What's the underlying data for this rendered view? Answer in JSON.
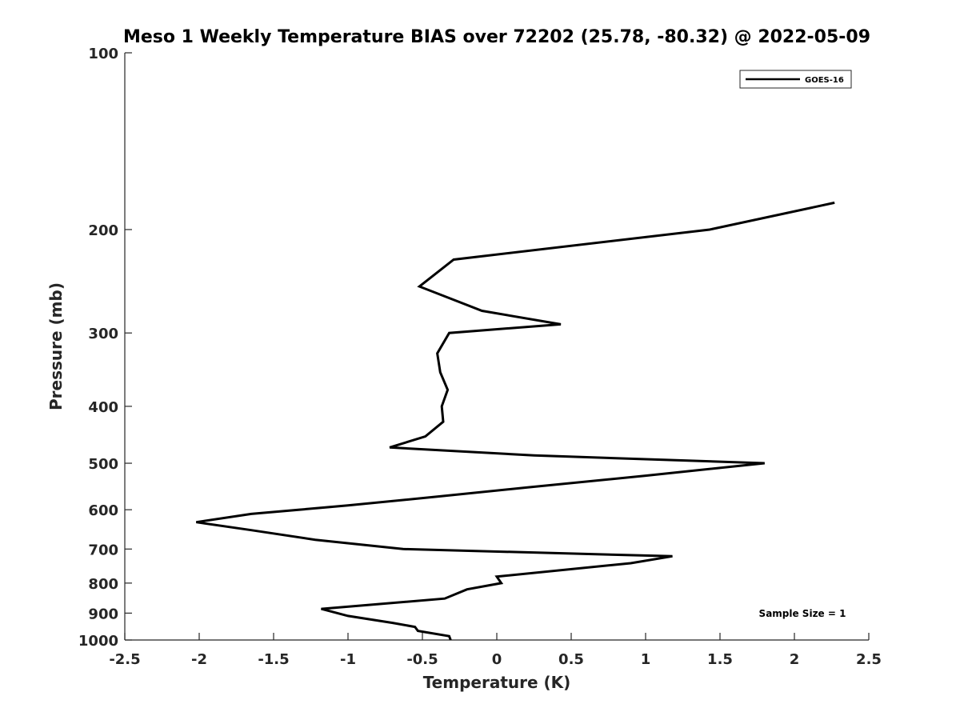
{
  "chart_data": {
    "type": "line",
    "title": "Meso 1 Weekly Temperature BIAS over 72202 (25.78, -80.32) @ 2022-05-09",
    "xlabel": "Temperature (K)",
    "ylabel": "Pressure (mb)",
    "xlim": [
      -2.5,
      2.5
    ],
    "ylim": [
      100,
      1000
    ],
    "y_scale": "log",
    "y_reversed": true,
    "grid": false,
    "legend_position": "top-right",
    "x_ticks": [
      -2.5,
      -2,
      -1.5,
      -1,
      -0.5,
      0,
      0.5,
      1,
      1.5,
      2,
      2.5
    ],
    "x_tick_labels": [
      "-2.5",
      "-2",
      "-1.5",
      "-1",
      "-0.5",
      "0",
      "0.5",
      "1",
      "1.5",
      "2",
      "2.5"
    ],
    "y_ticks": [
      100,
      200,
      300,
      400,
      500,
      600,
      700,
      800,
      900,
      1000
    ],
    "y_tick_labels": [
      "100",
      "200",
      "300",
      "400",
      "500",
      "600",
      "700",
      "800",
      "900",
      "1000"
    ],
    "series": [
      {
        "name": "GOES-16",
        "color": "#000000",
        "points": [
          {
            "x": 2.27,
            "p": 180
          },
          {
            "x": 1.43,
            "p": 200
          },
          {
            "x": -0.29,
            "p": 225
          },
          {
            "x": -0.52,
            "p": 250
          },
          {
            "x": -0.1,
            "p": 275
          },
          {
            "x": 0.43,
            "p": 290
          },
          {
            "x": -0.32,
            "p": 300
          },
          {
            "x": -0.4,
            "p": 325
          },
          {
            "x": -0.38,
            "p": 350
          },
          {
            "x": -0.33,
            "p": 375
          },
          {
            "x": -0.37,
            "p": 400
          },
          {
            "x": -0.36,
            "p": 425
          },
          {
            "x": -0.48,
            "p": 450
          },
          {
            "x": -0.72,
            "p": 470
          },
          {
            "x": 0.25,
            "p": 485
          },
          {
            "x": 1.8,
            "p": 500
          },
          {
            "x": 1.0,
            "p": 525
          },
          {
            "x": 0.2,
            "p": 550
          },
          {
            "x": -0.4,
            "p": 570
          },
          {
            "x": -1.0,
            "p": 590
          },
          {
            "x": -1.65,
            "p": 610
          },
          {
            "x": -2.02,
            "p": 630
          },
          {
            "x": -1.65,
            "p": 650
          },
          {
            "x": -1.22,
            "p": 675
          },
          {
            "x": -0.63,
            "p": 700
          },
          {
            "x": 1.18,
            "p": 720
          },
          {
            "x": 0.9,
            "p": 740
          },
          {
            "x": 0.0,
            "p": 780
          },
          {
            "x": 0.03,
            "p": 800
          },
          {
            "x": -0.2,
            "p": 820
          },
          {
            "x": -0.35,
            "p": 850
          },
          {
            "x": -1.18,
            "p": 885
          },
          {
            "x": -1.0,
            "p": 910
          },
          {
            "x": -0.7,
            "p": 935
          },
          {
            "x": -0.55,
            "p": 950
          },
          {
            "x": -0.53,
            "p": 965
          },
          {
            "x": -0.32,
            "p": 985
          },
          {
            "x": -0.31,
            "p": 1000
          }
        ]
      }
    ],
    "annotations": [
      "Sample Size = 1"
    ]
  }
}
